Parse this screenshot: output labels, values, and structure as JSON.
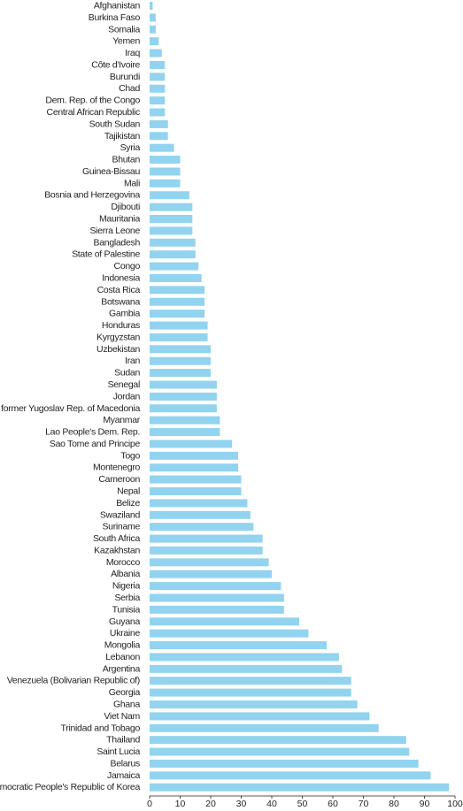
{
  "chart_data": {
    "type": "bar",
    "orientation": "horizontal",
    "title": "",
    "xlabel": "",
    "ylabel": "",
    "xlim": [
      0,
      100
    ],
    "xticks": [
      0,
      10,
      20,
      30,
      40,
      50,
      60,
      70,
      80,
      90,
      100
    ],
    "bar_color": "#92d3ef",
    "text_color": "#231f20",
    "grid": false,
    "legend": "none",
    "categories": [
      "Afghanistan",
      "Burkina Faso",
      "Somalia",
      "Yemen",
      "Iraq",
      "Côte d'Ivoire",
      "Burundi",
      "Chad",
      "Dem. Rep. of the Congo",
      "Central African Republic",
      "South Sudan",
      "Tajikistan",
      "Syria",
      "Bhutan",
      "Guinea-Bissau",
      "Mali",
      "Bosnia and Herzegovina",
      "Djibouti",
      "Mauritania",
      "Sierra Leone",
      "Bangladesh",
      "State of Palestine",
      "Congo",
      "Indonesia",
      "Costa Rica",
      "Botswana",
      "Gambia",
      "Honduras",
      "Kyrgyzstan",
      "Uzbekistan",
      "Iran",
      "Sudan",
      "Senegal",
      "Jordan",
      "The former Yugoslav Rep. of Macedonia",
      "Myanmar",
      "Lao People's Dem. Rep.",
      "Sao Tome and Principe",
      "Togo",
      "Montenegro",
      "Cameroon",
      "Nepal",
      "Belize",
      "Swaziland",
      "Suriname",
      "South Africa",
      "Kazakhstan",
      "Morocco",
      "Albania",
      "Nigeria",
      "Serbia",
      "Tunisia",
      "Guyana",
      "Ukraine",
      "Mongolia",
      "Lebanon",
      "Argentina",
      "Venezuela (Bolivarian Republic of)",
      "Georgia",
      "Ghana",
      "Viet Nam",
      "Trinidad and Tobago",
      "Thailand",
      "Saint Lucia",
      "Belarus",
      "Jamaica",
      "Democratic People's Republic of Korea"
    ],
    "values": [
      1,
      2,
      2,
      3,
      4,
      5,
      5,
      5,
      5,
      5,
      6,
      6,
      8,
      10,
      10,
      10,
      13,
      14,
      14,
      14,
      15,
      15,
      16,
      17,
      18,
      18,
      18,
      19,
      19,
      20,
      20,
      20,
      22,
      22,
      22,
      23,
      23,
      27,
      29,
      29,
      30,
      30,
      32,
      33,
      34,
      37,
      37,
      39,
      40,
      43,
      44,
      44,
      49,
      52,
      58,
      62,
      63,
      66,
      66,
      68,
      72,
      75,
      84,
      85,
      88,
      92,
      98
    ]
  }
}
